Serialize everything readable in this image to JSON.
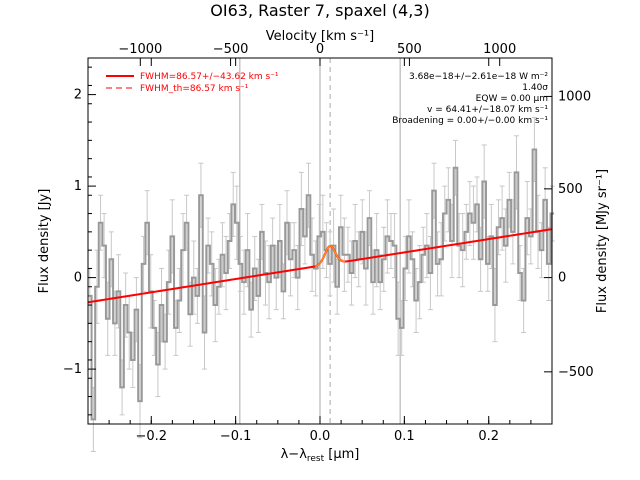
{
  "chart_data": {
    "type": "line",
    "title": "OI63, Raster 7, spaxel (4,3)",
    "xlabel_main": "λ−λ",
    "xlabel_sub": "rest",
    "xlabel_unit": " [μm]",
    "xlabel_top": "Velocity [km s⁻¹]",
    "ylabel_left": "Flux density [Jy]",
    "ylabel_right": "Flux density [MJy sr⁻¹]",
    "xlim": [
      -0.275,
      0.275
    ],
    "ylim": [
      -1.6,
      2.4
    ],
    "x_ticks": [
      {
        "v": -0.2,
        "label": "−0.2"
      },
      {
        "v": -0.1,
        "label": "−0.1"
      },
      {
        "v": 0.0,
        "label": "0.0"
      },
      {
        "v": 0.1,
        "label": "0.1"
      },
      {
        "v": 0.2,
        "label": "0.2"
      }
    ],
    "y_ticks": [
      {
        "v": -1,
        "label": "−1"
      },
      {
        "v": 0,
        "label": "0"
      },
      {
        "v": 1,
        "label": "1"
      },
      {
        "v": 2,
        "label": "2"
      }
    ],
    "top_ticks": [
      {
        "v": -0.213,
        "label": "−1000"
      },
      {
        "v": -0.106,
        "label": "−500"
      },
      {
        "v": 0.0,
        "label": "0"
      },
      {
        "v": 0.106,
        "label": "500"
      },
      {
        "v": 0.213,
        "label": "1000"
      }
    ],
    "right_ticks": [
      {
        "v": -1.03,
        "label": "−500"
      },
      {
        "v": 0.0,
        "label": "0"
      },
      {
        "v": 0.97,
        "label": "500"
      },
      {
        "v": 1.98,
        "label": "1000"
      }
    ],
    "vlines_solid": [
      -0.095,
      0.0,
      0.095
    ],
    "vline_dashed": 0.012,
    "legend": [
      {
        "label": "FWHM=86.57+/−43.62 km s⁻¹",
        "style": "solid"
      },
      {
        "label": "FWHM_th=86.57 km s⁻¹",
        "style": "dashed"
      }
    ],
    "annotations": [
      "3.68e−18+/−2.61e−18 W m⁻²",
      "1.40σ",
      "EQW = 0.00 μm",
      "v = 64.41+/−18.07 km s⁻¹",
      "Broadening = 0.00+/−0.00 km s⁻¹"
    ],
    "spectrum": {
      "name": "data",
      "x_start": -0.275,
      "x_step": 0.00425,
      "y": [
        -0.2,
        -1.55,
        -0.1,
        0.6,
        0.35,
        -0.45,
        0.2,
        -0.5,
        -0.15,
        -1.2,
        -0.3,
        -0.6,
        -0.9,
        -0.35,
        -1.35,
        0.15,
        0.6,
        -0.15,
        -0.55,
        -0.95,
        -0.3,
        -0.7,
        -0.05,
        0.45,
        -0.55,
        -0.25,
        0.3,
        0.6,
        -0.4,
        0.0,
        -0.2,
        0.9,
        -0.6,
        0.35,
        0.15,
        -0.3,
        -0.1,
        0.25,
        0.05,
        0.4,
        0.8,
        0.6,
        0.15,
        -0.05,
        0.3,
        -0.35,
        0.1,
        -0.2,
        0.5,
        0.05,
        -0.05,
        0.35,
        0.0,
        0.4,
        -0.15,
        0.6,
        0.2,
        0.3,
        0.0,
        0.75,
        0.45,
        0.9,
        0.25,
        0.1,
        0.45,
        0.5,
        0.3,
        0.15,
        0.35,
        -0.1,
        0.55,
        0.25,
        0.25,
        0.05,
        0.4,
        0.2,
        0.5,
        0.1,
        0.65,
        -0.05,
        0.3,
        -0.05,
        0.2,
        0.45,
        0.4,
        0.35,
        -0.45,
        -0.55,
        0.1,
        0.45,
        0.2,
        -0.25,
        -0.05,
        0.25,
        0.35,
        0.05,
        0.95,
        0.15,
        0.2,
        0.7,
        0.85,
        0.4,
        1.2,
        0.35,
        0.3,
        0.5,
        0.7,
        0.6,
        0.8,
        0.2,
        1.05,
        0.15,
        0.45,
        -0.3,
        0.55,
        0.65,
        0.35,
        0.85,
        0.5,
        1.15,
        0.05,
        -0.25,
        0.65,
        0.45,
        1.4,
        0.5,
        0.3,
        0.85,
        0.15,
        0.7
      ]
    },
    "continuum_fit": {
      "name": "fit",
      "x": [
        -0.275,
        0.275
      ],
      "y": [
        -0.27,
        0.53
      ]
    },
    "gaussian": {
      "center": 0.012,
      "sigma": 0.006,
      "peak": 0.2
    },
    "colors": {
      "spectrum": "#999999",
      "fit": "#ff0000",
      "vline": "#aaaaaa",
      "axis": "#000000"
    }
  }
}
